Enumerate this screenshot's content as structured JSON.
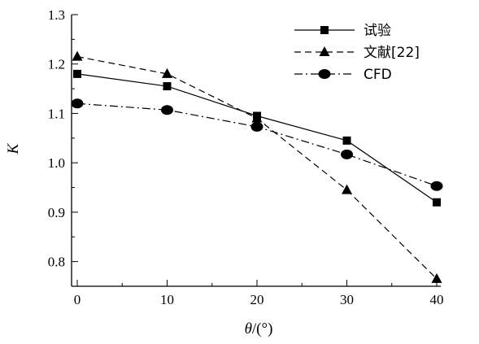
{
  "chart_data": {
    "type": "line",
    "xlabel_symbol": "θ",
    "xlabel_unit": "/(°)",
    "ylabel": "K",
    "xlim": [
      0,
      40
    ],
    "ylim": [
      0.75,
      1.3
    ],
    "xticks": [
      "0",
      "10",
      "20",
      "30",
      "40"
    ],
    "yticks": [
      "0.8",
      "0.9",
      "1.0",
      "1.1",
      "1.2",
      "1.3"
    ],
    "legend_position": "top-right",
    "grid": false,
    "series": [
      {
        "name": "试验",
        "marker": "square",
        "line": "solid",
        "x": [
          0,
          10,
          20,
          30,
          40
        ],
        "y": [
          1.18,
          1.155,
          1.095,
          1.045,
          0.92
        ]
      },
      {
        "name": "文献[22]",
        "marker": "triangle",
        "line": "dashed",
        "x": [
          0,
          10,
          20,
          30,
          40
        ],
        "y": [
          1.215,
          1.18,
          1.09,
          0.945,
          0.765
        ]
      },
      {
        "name": "CFD",
        "marker": "circle",
        "line": "dashdot",
        "x": [
          0,
          10,
          20,
          30,
          40
        ],
        "y": [
          1.12,
          1.107,
          1.073,
          1.017,
          0.953
        ]
      }
    ]
  }
}
